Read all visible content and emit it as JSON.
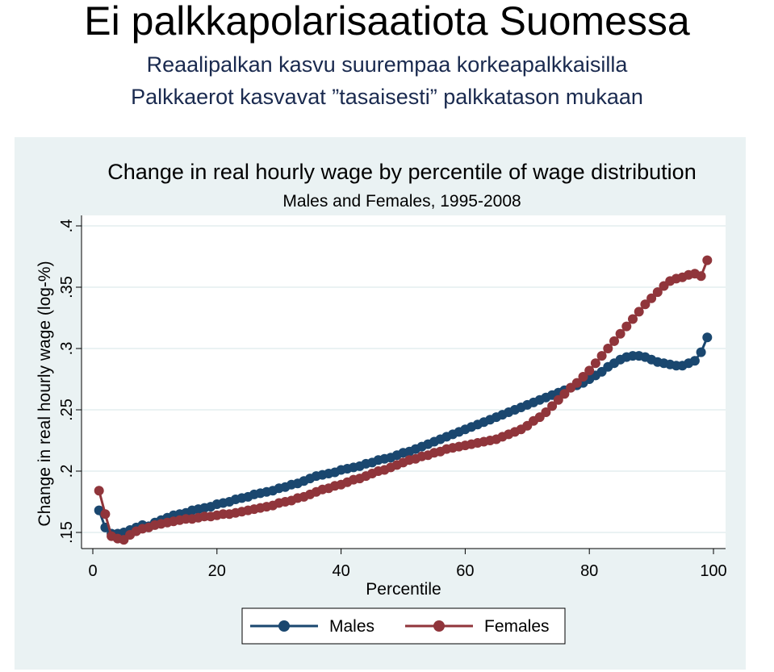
{
  "slide": {
    "title": "Ei palkkapolarisaatiota Suomessa",
    "subtitle1": "Reaalipalkan kasvu suurempaa korkeapalkkaisilla",
    "subtitle2": "Palkkaerot kasvavat ”tasaisesti” palkkatason mukaan"
  },
  "colors": {
    "panel_bg": "#eaf2f3",
    "males": "#1a476f",
    "females": "#90353b",
    "grid": "#eaf2f3"
  },
  "chart_data": {
    "type": "line",
    "title": "Change in real hourly wage by percentile of wage distribution",
    "subtitle": "Males and Females, 1995-2008",
    "xlabel": "Percentile",
    "ylabel": "Change in real hourly wage (log-%)",
    "xlim": [
      0,
      100
    ],
    "ylim": [
      0.145,
      0.4
    ],
    "xticks": [
      0,
      20,
      40,
      60,
      80,
      100
    ],
    "yticks": [
      0.15,
      0.2,
      0.25,
      0.3,
      0.35,
      0.4
    ],
    "ytick_labels": [
      ".15",
      ".2",
      ".25",
      ".3",
      ".35",
      ".4"
    ],
    "grid": true,
    "legend_position": "bottom",
    "x": [
      1,
      2,
      3,
      4,
      5,
      6,
      7,
      8,
      9,
      10,
      11,
      12,
      13,
      14,
      15,
      16,
      17,
      18,
      19,
      20,
      21,
      22,
      23,
      24,
      25,
      26,
      27,
      28,
      29,
      30,
      31,
      32,
      33,
      34,
      35,
      36,
      37,
      38,
      39,
      40,
      41,
      42,
      43,
      44,
      45,
      46,
      47,
      48,
      49,
      50,
      51,
      52,
      53,
      54,
      55,
      56,
      57,
      58,
      59,
      60,
      61,
      62,
      63,
      64,
      65,
      66,
      67,
      68,
      69,
      70,
      71,
      72,
      73,
      74,
      75,
      76,
      77,
      78,
      79,
      80,
      81,
      82,
      83,
      84,
      85,
      86,
      87,
      88,
      89,
      90,
      91,
      92,
      93,
      94,
      95,
      96,
      97,
      98,
      99
    ],
    "series": [
      {
        "name": "Males",
        "values": [
          0.168,
          0.154,
          0.149,
          0.149,
          0.15,
          0.152,
          0.154,
          0.156,
          0.155,
          0.158,
          0.16,
          0.162,
          0.164,
          0.165,
          0.166,
          0.168,
          0.169,
          0.17,
          0.171,
          0.173,
          0.174,
          0.175,
          0.177,
          0.178,
          0.179,
          0.181,
          0.182,
          0.183,
          0.184,
          0.186,
          0.187,
          0.189,
          0.19,
          0.192,
          0.194,
          0.196,
          0.197,
          0.198,
          0.199,
          0.201,
          0.202,
          0.203,
          0.204,
          0.206,
          0.207,
          0.209,
          0.21,
          0.211,
          0.213,
          0.215,
          0.216,
          0.218,
          0.22,
          0.222,
          0.224,
          0.226,
          0.228,
          0.23,
          0.232,
          0.234,
          0.236,
          0.238,
          0.24,
          0.242,
          0.244,
          0.246,
          0.248,
          0.25,
          0.252,
          0.254,
          0.256,
          0.258,
          0.26,
          0.262,
          0.264,
          0.266,
          0.268,
          0.27,
          0.272,
          0.275,
          0.278,
          0.281,
          0.285,
          0.288,
          0.291,
          0.293,
          0.294,
          0.294,
          0.293,
          0.291,
          0.289,
          0.288,
          0.287,
          0.286,
          0.286,
          0.288,
          0.29,
          0.297,
          0.309
        ]
      },
      {
        "name": "Females",
        "values": [
          0.184,
          0.165,
          0.147,
          0.145,
          0.144,
          0.148,
          0.151,
          0.153,
          0.154,
          0.156,
          0.157,
          0.158,
          0.159,
          0.16,
          0.161,
          0.161,
          0.162,
          0.163,
          0.163,
          0.164,
          0.165,
          0.165,
          0.166,
          0.167,
          0.168,
          0.169,
          0.17,
          0.171,
          0.172,
          0.174,
          0.175,
          0.176,
          0.178,
          0.179,
          0.181,
          0.183,
          0.185,
          0.186,
          0.188,
          0.189,
          0.191,
          0.193,
          0.194,
          0.196,
          0.198,
          0.2,
          0.201,
          0.203,
          0.205,
          0.207,
          0.209,
          0.21,
          0.212,
          0.213,
          0.215,
          0.216,
          0.218,
          0.219,
          0.22,
          0.221,
          0.222,
          0.223,
          0.224,
          0.225,
          0.226,
          0.228,
          0.23,
          0.232,
          0.234,
          0.237,
          0.241,
          0.244,
          0.248,
          0.253,
          0.258,
          0.263,
          0.268,
          0.272,
          0.277,
          0.282,
          0.288,
          0.294,
          0.3,
          0.306,
          0.312,
          0.318,
          0.324,
          0.33,
          0.336,
          0.341,
          0.346,
          0.351,
          0.355,
          0.357,
          0.358,
          0.36,
          0.361,
          0.359,
          0.372
        ]
      }
    ]
  }
}
